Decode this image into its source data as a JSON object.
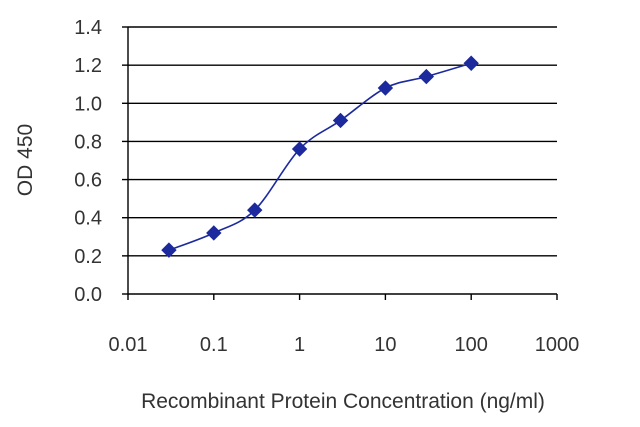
{
  "chart_data": {
    "type": "line",
    "xlabel": "Recombinant Protein Concentration (ng/ml)",
    "ylabel": "OD 450",
    "x_scale": "log",
    "xlim": [
      0.01,
      1000
    ],
    "ylim": [
      0.0,
      1.4
    ],
    "x_ticks": [
      {
        "value": 0.01,
        "label": "0.01"
      },
      {
        "value": 0.1,
        "label": "0.1"
      },
      {
        "value": 1,
        "label": "1"
      },
      {
        "value": 10,
        "label": "10"
      },
      {
        "value": 100,
        "label": "100"
      },
      {
        "value": 1000,
        "label": "1000"
      }
    ],
    "y_ticks": [
      {
        "value": 0.0,
        "label": "0.0"
      },
      {
        "value": 0.2,
        "label": "0.2"
      },
      {
        "value": 0.4,
        "label": "0.4"
      },
      {
        "value": 0.6,
        "label": "0.6"
      },
      {
        "value": 0.8,
        "label": "0.8"
      },
      {
        "value": 1.0,
        "label": "1.0"
      },
      {
        "value": 1.2,
        "label": "1.2"
      },
      {
        "value": 1.4,
        "label": "1.4"
      }
    ],
    "grid": "horizontal",
    "series": [
      {
        "color": "#1c2a9e",
        "marker": "diamond",
        "x": [
          0.03,
          0.1,
          0.3,
          1,
          3,
          10,
          30,
          100
        ],
        "y": [
          0.23,
          0.32,
          0.44,
          0.76,
          0.91,
          1.08,
          1.14,
          1.21
        ]
      }
    ]
  }
}
